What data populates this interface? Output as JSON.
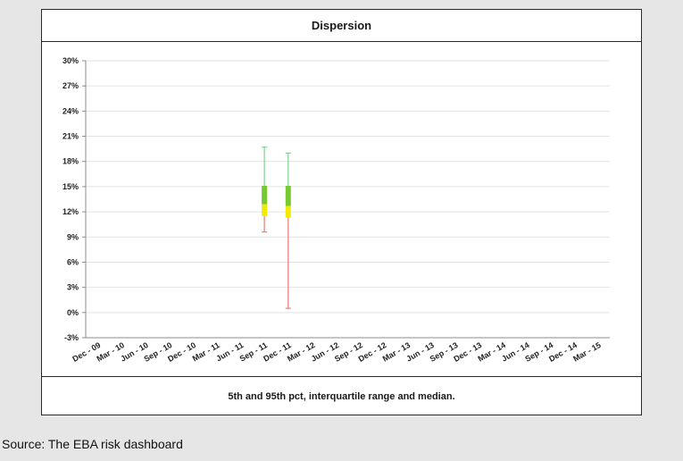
{
  "page": {
    "source": "Source: The EBA risk dashboard"
  },
  "chart_data": {
    "type": "box",
    "title": "Dispersion",
    "footer": "5th and 95th pct, interquartile range and median.",
    "xlabel": "",
    "ylabel": "",
    "y_tick_labels": [
      "30%",
      "27%",
      "24%",
      "21%",
      "18%",
      "15%",
      "12%",
      "9%",
      "6%",
      "3%",
      "0%",
      "-3%"
    ],
    "ylim": [
      -3,
      30
    ],
    "categories": [
      "Dec - 09",
      "Mar - 10",
      "Jun - 10",
      "Sep - 10",
      "Dec - 10",
      "Mar - 11",
      "Jun - 11",
      "Sep - 11",
      "Dec - 11",
      "Mar - 12",
      "Jun - 12",
      "Sep - 12",
      "Dec - 12",
      "Mar - 13",
      "Jun - 13",
      "Sep - 13",
      "Dec - 13",
      "Mar - 14",
      "Jun - 14",
      "Sep - 14",
      "Dec - 14",
      "Mar - 15"
    ],
    "grid": true,
    "boxes": [
      {
        "category": "Sep - 11",
        "p5": 9.6,
        "q1": 11.5,
        "median": 12.9,
        "q3": 15.1,
        "p95": 19.7
      },
      {
        "category": "Dec - 11",
        "p5": 0.5,
        "q1": 11.3,
        "median": 12.7,
        "q3": 15.1,
        "p95": 19.0
      }
    ],
    "colors": {
      "upper_whisker": "#7fd48f",
      "upper_box": "#78c832",
      "lower_box": "#f2ea00",
      "lower_whisker": "#ec7b7b",
      "grid": "#e2e2e2",
      "axis": "#8c8c8c"
    }
  }
}
